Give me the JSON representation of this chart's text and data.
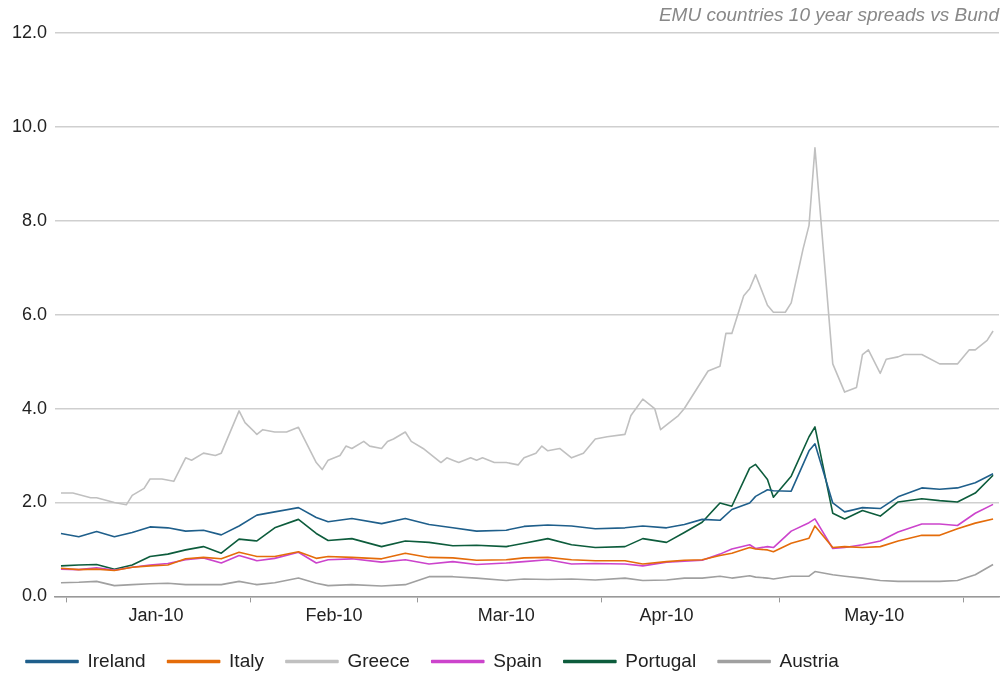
{
  "chart_data": {
    "type": "line",
    "title": "EMU countries 10 year spreads vs Bund",
    "legend": "bottom",
    "grid": "y",
    "xlim": [
      "2009-12-30",
      "2010-06-07"
    ],
    "xticks": [
      {
        "value": "2010-01-01",
        "label": null
      },
      {
        "value": "2010-01-16",
        "label": "Jan-10"
      },
      {
        "value": "2010-02-01",
        "label": null
      },
      {
        "value": "2010-02-15",
        "label": "Feb-10"
      },
      {
        "value": "2010-03-01",
        "label": null
      },
      {
        "value": "2010-03-16",
        "label": "Mar-10"
      },
      {
        "value": "2010-04-01",
        "label": null
      },
      {
        "value": "2010-04-12",
        "label": "Apr-10"
      },
      {
        "value": "2010-05-01",
        "label": null
      },
      {
        "value": "2010-05-17",
        "label": "May-10"
      },
      {
        "value": "2010-06-01",
        "label": null
      }
    ],
    "ylim": [
      0,
      12
    ],
    "yticks": [
      {
        "value": 0,
        "label": "0.0"
      },
      {
        "value": 2,
        "label": "2.0"
      },
      {
        "value": 4,
        "label": "4.0"
      },
      {
        "value": 6,
        "label": "6.0"
      },
      {
        "value": 8,
        "label": "8.0"
      },
      {
        "value": 10,
        "label": "10.0"
      },
      {
        "value": 12,
        "label": "12.0"
      }
    ],
    "x": [
      "2009-12-31",
      "2010-01-03",
      "2010-01-06",
      "2010-01-09",
      "2010-01-12",
      "2010-01-15",
      "2010-01-18",
      "2010-01-21",
      "2010-01-24",
      "2010-01-27",
      "2010-01-30",
      "2010-02-02",
      "2010-02-05",
      "2010-02-09",
      "2010-02-12",
      "2010-02-14",
      "2010-02-18",
      "2010-02-23",
      "2010-02-27",
      "2010-03-03",
      "2010-03-07",
      "2010-03-11",
      "2010-03-16",
      "2010-03-19",
      "2010-03-23",
      "2010-03-27",
      "2010-03-31",
      "2010-04-05",
      "2010-04-08",
      "2010-04-12",
      "2010-04-15",
      "2010-04-18",
      "2010-04-21",
      "2010-04-23",
      "2010-04-26",
      "2010-04-27",
      "2010-04-29",
      "2010-04-30",
      "2010-05-03",
      "2010-05-06",
      "2010-05-07",
      "2010-05-10",
      "2010-05-12",
      "2010-05-15",
      "2010-05-18",
      "2010-05-21",
      "2010-05-25",
      "2010-05-28",
      "2010-05-31",
      "2010-06-03",
      "2010-06-06"
    ],
    "series": [
      {
        "name": "Ireland",
        "color": "#1f5f8b",
        "values": [
          1.34,
          1.27,
          1.38,
          1.27,
          1.36,
          1.48,
          1.46,
          1.39,
          1.41,
          1.31,
          1.5,
          1.73,
          1.8,
          1.89,
          1.68,
          1.59,
          1.66,
          1.55,
          1.66,
          1.53,
          1.46,
          1.39,
          1.41,
          1.49,
          1.52,
          1.5,
          1.44,
          1.46,
          1.5,
          1.46,
          1.53,
          1.64,
          1.62,
          1.85,
          1.99,
          2.13,
          2.27,
          2.25,
          2.24,
          3.1,
          3.25,
          1.99,
          1.8,
          1.89,
          1.87,
          2.12,
          2.31,
          2.28,
          2.31,
          2.42,
          2.61
        ]
      },
      {
        "name": "Italy",
        "color": "#e46c0a",
        "values": [
          0.6,
          0.57,
          0.58,
          0.55,
          0.62,
          0.65,
          0.67,
          0.8,
          0.83,
          0.8,
          0.94,
          0.85,
          0.85,
          0.95,
          0.81,
          0.85,
          0.83,
          0.8,
          0.92,
          0.83,
          0.82,
          0.77,
          0.78,
          0.82,
          0.83,
          0.78,
          0.76,
          0.76,
          0.69,
          0.74,
          0.77,
          0.78,
          0.87,
          0.92,
          1.04,
          1.01,
          0.99,
          0.95,
          1.13,
          1.24,
          1.5,
          1.04,
          1.06,
          1.04,
          1.06,
          1.18,
          1.3,
          1.3,
          1.44,
          1.56,
          1.65
        ]
      },
      {
        "name": "Greece",
        "color": "#c0c0c0",
        "x": [
          "2009-12-31",
          "2010-01-02",
          "2010-01-05",
          "2010-01-06",
          "2010-01-09",
          "2010-01-11",
          "2010-01-12",
          "2010-01-14",
          "2010-01-15",
          "2010-01-17",
          "2010-01-19",
          "2010-01-21",
          "2010-01-22",
          "2010-01-24",
          "2010-01-26",
          "2010-01-27",
          "2010-01-30",
          "2010-01-31",
          "2010-02-02",
          "2010-02-03",
          "2010-02-05",
          "2010-02-07",
          "2010-02-09",
          "2010-02-12",
          "2010-02-13",
          "2010-02-14",
          "2010-02-16",
          "2010-02-17",
          "2010-02-18",
          "2010-02-20",
          "2010-02-21",
          "2010-02-23",
          "2010-02-24",
          "2010-02-25",
          "2010-02-27",
          "2010-02-28",
          "2010-03-02",
          "2010-03-03",
          "2010-03-05",
          "2010-03-06",
          "2010-03-07",
          "2010-03-08",
          "2010-03-10",
          "2010-03-11",
          "2010-03-12",
          "2010-03-14",
          "2010-03-16",
          "2010-03-18",
          "2010-03-19",
          "2010-03-21",
          "2010-03-22",
          "2010-03-23",
          "2010-03-25",
          "2010-03-27",
          "2010-03-29",
          "2010-03-31",
          "2010-04-02",
          "2010-04-05",
          "2010-04-06",
          "2010-04-08",
          "2010-04-10",
          "2010-04-11",
          "2010-04-12",
          "2010-04-14",
          "2010-04-15",
          "2010-04-19",
          "2010-04-21",
          "2010-04-22",
          "2010-04-23",
          "2010-04-25",
          "2010-04-26",
          "2010-04-27",
          "2010-04-29",
          "2010-04-30",
          "2010-05-02",
          "2010-05-03",
          "2010-05-05",
          "2010-05-06",
          "2010-05-07",
          "2010-05-10",
          "2010-05-12",
          "2010-05-14",
          "2010-05-15",
          "2010-05-16",
          "2010-05-18",
          "2010-05-19",
          "2010-05-21",
          "2010-05-22",
          "2010-05-25",
          "2010-05-28",
          "2010-05-31",
          "2010-06-02",
          "2010-06-03",
          "2010-06-05",
          "2010-06-06"
        ],
        "values": [
          2.2,
          2.2,
          2.1,
          2.1,
          2.0,
          1.95,
          2.15,
          2.3,
          2.5,
          2.5,
          2.45,
          2.95,
          2.9,
          3.05,
          3.0,
          3.05,
          3.95,
          3.7,
          3.45,
          3.55,
          3.5,
          3.5,
          3.6,
          2.85,
          2.7,
          2.9,
          3.0,
          3.2,
          3.15,
          3.3,
          3.2,
          3.15,
          3.3,
          3.35,
          3.5,
          3.3,
          3.15,
          3.05,
          2.85,
          2.95,
          2.9,
          2.85,
          2.95,
          2.9,
          2.95,
          2.85,
          2.85,
          2.8,
          2.95,
          3.05,
          3.2,
          3.1,
          3.15,
          2.95,
          3.05,
          3.35,
          3.4,
          3.45,
          3.85,
          4.2,
          4.0,
          3.55,
          3.65,
          3.85,
          4.0,
          4.8,
          4.9,
          5.6,
          5.6,
          6.4,
          6.55,
          6.85,
          6.2,
          6.05,
          6.05,
          6.25,
          7.4,
          7.9,
          9.55,
          4.95,
          4.35,
          4.45,
          5.15,
          5.25,
          4.75,
          5.05,
          5.1,
          5.15,
          5.15,
          4.95,
          4.95,
          5.25,
          5.25,
          5.45,
          5.65
        ]
      },
      {
        "name": "Spain",
        "color": "#cc44cc",
        "values": [
          0.58,
          0.57,
          0.61,
          0.56,
          0.62,
          0.67,
          0.7,
          0.78,
          0.82,
          0.71,
          0.87,
          0.76,
          0.81,
          0.94,
          0.71,
          0.78,
          0.8,
          0.73,
          0.78,
          0.69,
          0.74,
          0.68,
          0.71,
          0.74,
          0.78,
          0.69,
          0.7,
          0.69,
          0.65,
          0.73,
          0.75,
          0.77,
          0.9,
          1.01,
          1.1,
          1.02,
          1.06,
          1.04,
          1.39,
          1.57,
          1.65,
          1.02,
          1.04,
          1.1,
          1.18,
          1.37,
          1.54,
          1.54,
          1.51,
          1.77,
          1.96
        ]
      },
      {
        "name": "Portugal",
        "color": "#0d5c3c",
        "values": [
          0.65,
          0.67,
          0.68,
          0.58,
          0.67,
          0.85,
          0.9,
          0.99,
          1.06,
          0.92,
          1.22,
          1.18,
          1.46,
          1.64,
          1.34,
          1.19,
          1.23,
          1.06,
          1.18,
          1.15,
          1.08,
          1.09,
          1.06,
          1.13,
          1.23,
          1.1,
          1.04,
          1.06,
          1.23,
          1.15,
          1.36,
          1.58,
          1.99,
          1.92,
          2.73,
          2.81,
          2.49,
          2.11,
          2.56,
          3.4,
          3.61,
          1.77,
          1.65,
          1.83,
          1.71,
          2.01,
          2.08,
          2.04,
          2.01,
          2.2,
          2.58
        ]
      },
      {
        "name": "Austria",
        "color": "#a0a0a0",
        "values": [
          0.29,
          0.3,
          0.32,
          0.23,
          0.25,
          0.27,
          0.28,
          0.25,
          0.25,
          0.25,
          0.32,
          0.25,
          0.29,
          0.39,
          0.28,
          0.23,
          0.25,
          0.22,
          0.25,
          0.42,
          0.42,
          0.39,
          0.34,
          0.37,
          0.36,
          0.37,
          0.35,
          0.39,
          0.34,
          0.35,
          0.39,
          0.39,
          0.43,
          0.39,
          0.44,
          0.41,
          0.39,
          0.37,
          0.43,
          0.43,
          0.53,
          0.46,
          0.43,
          0.39,
          0.34,
          0.32,
          0.32,
          0.32,
          0.34,
          0.46,
          0.68
        ]
      }
    ]
  }
}
